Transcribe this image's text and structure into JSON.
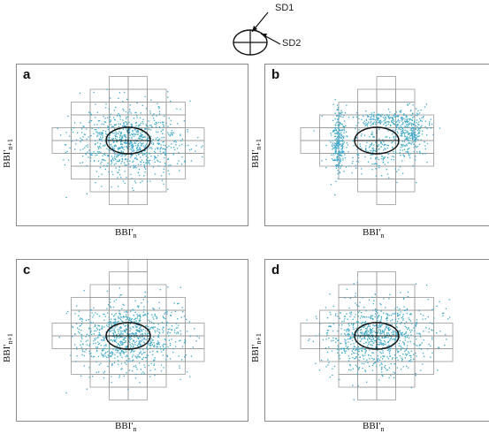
{
  "legend": {
    "sd1_label": "SD1",
    "sd2_label": "SD2"
  },
  "panels": [
    {
      "id": "a",
      "label": "a",
      "pattern": "normal",
      "cells": "cross-wide"
    },
    {
      "id": "b",
      "label": "b",
      "pattern": "clustered",
      "cells": "cross-narrow"
    },
    {
      "id": "c",
      "label": "c",
      "pattern": "normal",
      "cells": "cross-wide-2"
    },
    {
      "id": "d",
      "label": "d",
      "pattern": "normal",
      "cells": "cross-wide-3"
    }
  ],
  "axis": {
    "x_base": "BBI'",
    "x_sub": "n",
    "y_base": "BBI'",
    "y_sub": "n+1"
  },
  "colors": {
    "points": "#3fa9c9",
    "grid": "#9a9a9a",
    "ellipse": "#111111",
    "frame": "#8a8a8a"
  }
}
